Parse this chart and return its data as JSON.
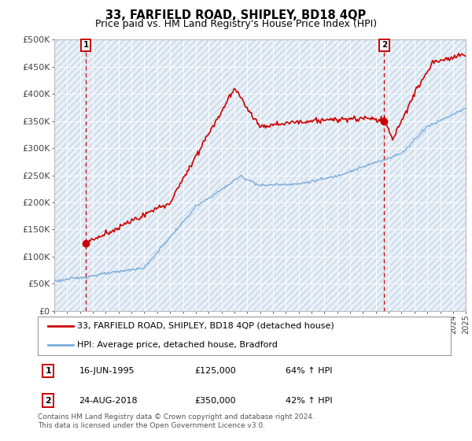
{
  "title": "33, FARFIELD ROAD, SHIPLEY, BD18 4QP",
  "subtitle": "Price paid vs. HM Land Registry's House Price Index (HPI)",
  "ylim": [
    0,
    500000
  ],
  "yticks": [
    0,
    50000,
    100000,
    150000,
    200000,
    250000,
    300000,
    350000,
    400000,
    450000,
    500000
  ],
  "ytick_labels": [
    "£0",
    "£50K",
    "£100K",
    "£150K",
    "£200K",
    "£250K",
    "£300K",
    "£350K",
    "£400K",
    "£450K",
    "£500K"
  ],
  "xlim_start": 1993,
  "xlim_end": 2025,
  "hpi_color": "#7aaddd",
  "price_color": "#cc0000",
  "bg_color": "#e8f0f8",
  "hatch_color": "#c8d4e4",
  "grid_color": "#ffffff",
  "sale1_date_x": 1995.46,
  "sale1_price": 125000,
  "sale2_date_x": 2018.65,
  "sale2_price": 350000,
  "legend_line1": "33, FARFIELD ROAD, SHIPLEY, BD18 4QP (detached house)",
  "legend_line2": "HPI: Average price, detached house, Bradford",
  "annotation1_label": "1",
  "annotation1_date": "16-JUN-1995",
  "annotation1_price": "£125,000",
  "annotation1_pct": "64% ↑ HPI",
  "annotation2_label": "2",
  "annotation2_date": "24-AUG-2018",
  "annotation2_price": "£350,000",
  "annotation2_pct": "42% ↑ HPI",
  "footer": "Contains HM Land Registry data © Crown copyright and database right 2024.\nThis data is licensed under the Open Government Licence v3.0."
}
